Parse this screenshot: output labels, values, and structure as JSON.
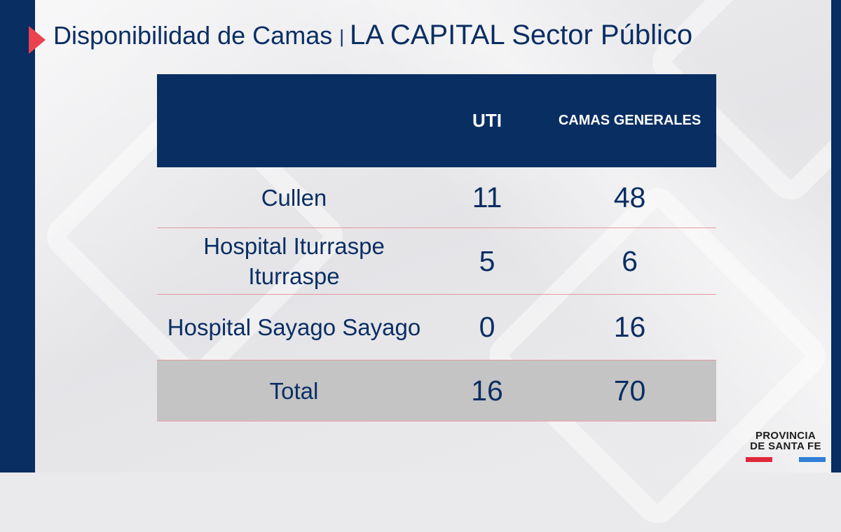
{
  "slide": {
    "title_main": "Disponibilidad de Camas",
    "title_separator": "|",
    "title_sub": "LA CAPITAL Sector Público"
  },
  "table": {
    "headers": {
      "name": "",
      "uti": "UTI",
      "general": "CAMAS GENERALES"
    },
    "rows": [
      {
        "name": "Cullen",
        "uti": "11",
        "general": "48"
      },
      {
        "name": "Hospital Iturraspe Iturraspe",
        "uti": "5",
        "general": "6"
      },
      {
        "name": "Hospital Sayago Sayago",
        "uti": "0",
        "general": "16"
      }
    ],
    "total": {
      "name": "Total",
      "uti": "16",
      "general": "70"
    }
  },
  "logo": {
    "line1": "PROVINCIA",
    "line2": "DE SANTA FE"
  },
  "colors": {
    "navy": "#082e62",
    "accent_red": "#e8434f",
    "total_row": "#c4c4c4",
    "logo_red": "#e0283a",
    "logo_blue": "#2f7fd6"
  }
}
